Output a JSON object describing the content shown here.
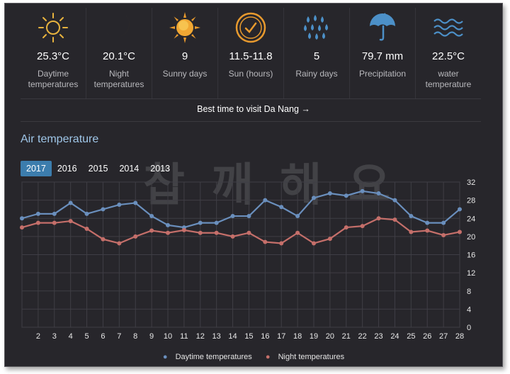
{
  "stats": [
    {
      "value": "25.3°C",
      "label": "Daytime temperatures",
      "icon": "sun-outline-icon"
    },
    {
      "value": "20.1°C",
      "label": "Night temperatures",
      "icon": "moon-icon"
    },
    {
      "value": "9",
      "label": "Sunny days",
      "icon": "sun-icon"
    },
    {
      "value": "11.5-11.8",
      "label": "Sun (hours)",
      "icon": "clock-icon"
    },
    {
      "value": "5",
      "label": "Rainy days",
      "icon": "rain-drops-icon"
    },
    {
      "value": "79.7 mm",
      "label": "Precipitation",
      "icon": "umbrella-icon"
    },
    {
      "value": "22.5°C",
      "label": "water temperature",
      "icon": "waves-icon"
    }
  ],
  "best_time_link": "Best time to visit Da Nang →",
  "section_title": "Air temperature",
  "years": [
    "2017",
    "2016",
    "2015",
    "2014",
    "2013"
  ],
  "active_year": "2017",
  "watermark": "찹 깨 해 요",
  "colors": {
    "day": "#6a8fbd",
    "night": "#c56f6a",
    "accent": "#3c7dad",
    "icon_gold": "#e8b33e"
  },
  "chart_data": {
    "type": "line",
    "x": [
      1,
      2,
      3,
      4,
      5,
      6,
      7,
      8,
      9,
      10,
      11,
      12,
      13,
      14,
      15,
      16,
      17,
      18,
      19,
      20,
      21,
      22,
      23,
      24,
      25,
      26,
      27,
      28
    ],
    "x_tick_labels": [
      "2",
      "3",
      "4",
      "5",
      "6",
      "7",
      "8",
      "9",
      "10",
      "11",
      "12",
      "13",
      "14",
      "15",
      "16",
      "17",
      "18",
      "19",
      "20",
      "21",
      "22",
      "23",
      "24",
      "25",
      "26",
      "27",
      "28"
    ],
    "y_ticks": [
      "0",
      "4",
      "8",
      "12",
      "16",
      "20",
      "24",
      "28",
      "32"
    ],
    "ylim": [
      0,
      32
    ],
    "series": [
      {
        "name": "Daytime temperatures",
        "values": [
          24,
          25,
          25,
          27.4,
          25,
          26,
          27,
          27.4,
          24.5,
          22.5,
          22,
          23,
          23,
          24.5,
          24.5,
          28,
          26.5,
          24.5,
          28.5,
          29.5,
          29,
          30,
          29.5,
          28,
          24.5,
          23,
          23,
          26
        ]
      },
      {
        "name": "Night temperatures",
        "values": [
          22,
          23,
          23,
          23.4,
          21.7,
          19.4,
          18.5,
          20,
          21.3,
          20.8,
          21.4,
          20.8,
          20.8,
          20,
          20.8,
          18.8,
          18.5,
          20.8,
          18.5,
          19.5,
          22,
          22.3,
          24,
          23.7,
          21,
          21.3,
          20.3,
          21
        ]
      }
    ],
    "legend": "bottom",
    "grid": true
  }
}
